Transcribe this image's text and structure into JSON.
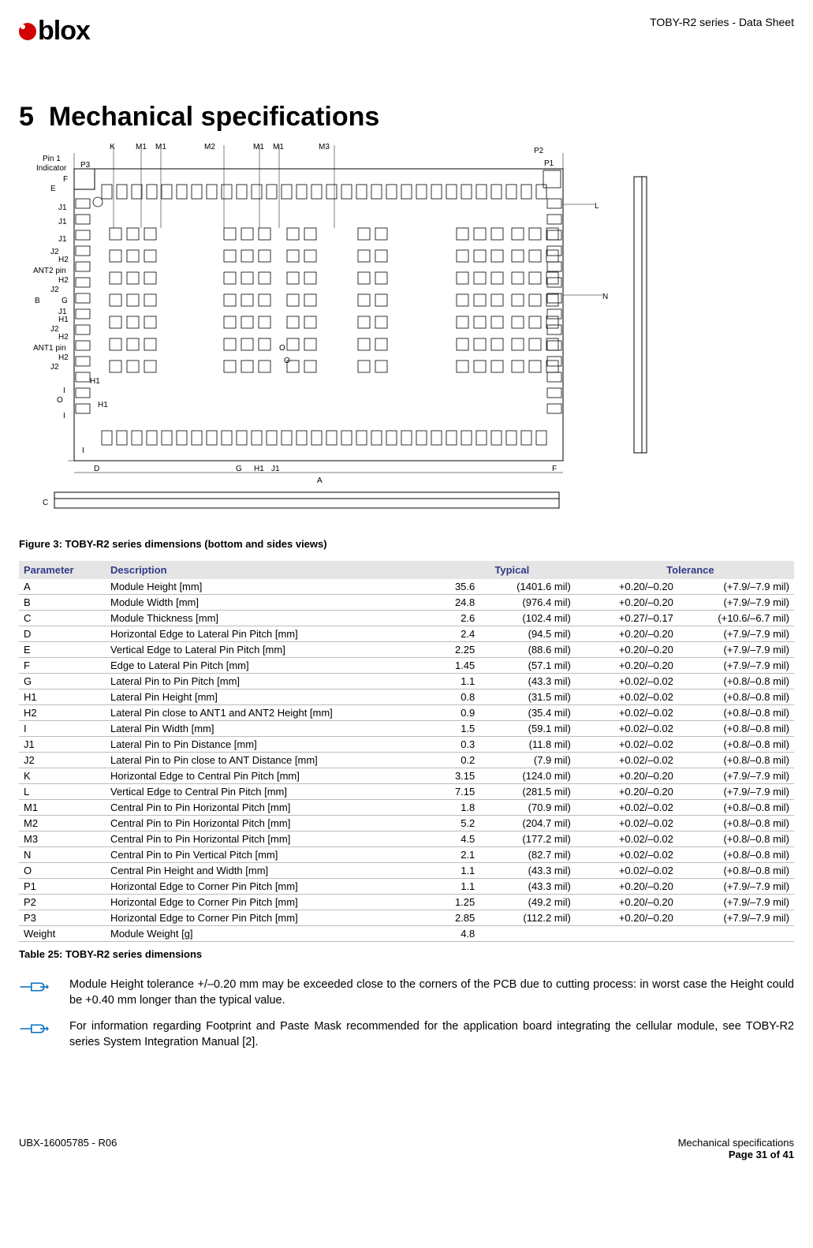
{
  "header": {
    "doc_type": "TOBY-R2 series - Data Sheet",
    "logo_text": "blox"
  },
  "section": {
    "number": "5",
    "title": "Mechanical specifications"
  },
  "figure_caption": "Figure 3: TOBY-R2 series dimensions (bottom and sides views)",
  "table_caption": "Table 25: TOBY-R2 series dimensions",
  "table_header": {
    "param": "Parameter",
    "desc": "Description",
    "typ": "Typical",
    "tol": "Tolerance"
  },
  "rows": [
    {
      "p": "A",
      "d": "Module Height [mm]",
      "v": "35.6",
      "mil": "(1401.6 mil)",
      "t1": "+0.20/–0.20",
      "t2": "(+7.9/–7.9 mil)"
    },
    {
      "p": "B",
      "d": "Module Width [mm]",
      "v": "24.8",
      "mil": "(976.4 mil)",
      "t1": "+0.20/–0.20",
      "t2": "(+7.9/–7.9 mil)"
    },
    {
      "p": "C",
      "d": "Module Thickness [mm]",
      "v": "2.6",
      "mil": "(102.4 mil)",
      "t1": "+0.27/–0.17",
      "t2": "(+10.6/–6.7 mil)"
    },
    {
      "p": "D",
      "d": "Horizontal Edge to Lateral Pin Pitch [mm]",
      "v": "2.4",
      "mil": "(94.5 mil)",
      "t1": "+0.20/–0.20",
      "t2": "(+7.9/–7.9 mil)"
    },
    {
      "p": "E",
      "d": "Vertical Edge to Lateral Pin Pitch [mm]",
      "v": "2.25",
      "mil": "(88.6 mil)",
      "t1": "+0.20/–0.20",
      "t2": "(+7.9/–7.9 mil)"
    },
    {
      "p": "F",
      "d": "Edge to Lateral Pin Pitch [mm]",
      "v": "1.45",
      "mil": "(57.1 mil)",
      "t1": "+0.20/–0.20",
      "t2": "(+7.9/–7.9 mil)"
    },
    {
      "p": "G",
      "d": "Lateral Pin to Pin Pitch [mm]",
      "v": "1.1",
      "mil": "(43.3 mil)",
      "t1": "+0.02/–0.02",
      "t2": "(+0.8/–0.8 mil)"
    },
    {
      "p": "H1",
      "d": "Lateral Pin Height [mm]",
      "v": "0.8",
      "mil": "(31.5 mil)",
      "t1": "+0.02/–0.02",
      "t2": "(+0.8/–0.8 mil)"
    },
    {
      "p": "H2",
      "d": "Lateral Pin close to ANT1 and ANT2 Height [mm]",
      "v": "0.9",
      "mil": "(35.4 mil)",
      "t1": "+0.02/–0.02",
      "t2": "(+0.8/–0.8 mil)"
    },
    {
      "p": "I",
      "d": "Lateral Pin Width [mm]",
      "v": "1.5",
      "mil": "(59.1 mil)",
      "t1": "+0.02/–0.02",
      "t2": "(+0.8/–0.8 mil)"
    },
    {
      "p": "J1",
      "d": "Lateral Pin to Pin Distance [mm]",
      "v": "0.3",
      "mil": "(11.8 mil)",
      "t1": "+0.02/–0.02",
      "t2": "(+0.8/–0.8 mil)"
    },
    {
      "p": "J2",
      "d": "Lateral Pin to Pin close to ANT Distance [mm]",
      "v": "0.2",
      "mil": "(7.9 mil)",
      "t1": "+0.02/–0.02",
      "t2": "(+0.8/–0.8 mil)"
    },
    {
      "p": "K",
      "d": "Horizontal Edge to Central Pin Pitch [mm]",
      "v": "3.15",
      "mil": "(124.0 mil)",
      "t1": "+0.20/–0.20",
      "t2": "(+7.9/–7.9 mil)"
    },
    {
      "p": "L",
      "d": "Vertical Edge to Central Pin Pitch [mm]",
      "v": "7.15",
      "mil": "(281.5 mil)",
      "t1": "+0.20/–0.20",
      "t2": "(+7.9/–7.9 mil)"
    },
    {
      "p": "M1",
      "d": "Central Pin to Pin Horizontal Pitch [mm]",
      "v": "1.8",
      "mil": "(70.9 mil)",
      "t1": "+0.02/–0.02",
      "t2": "(+0.8/–0.8 mil)"
    },
    {
      "p": "M2",
      "d": "Central Pin to Pin Horizontal Pitch [mm]",
      "v": "5.2",
      "mil": "(204.7 mil)",
      "t1": "+0.02/–0.02",
      "t2": "(+0.8/–0.8 mil)"
    },
    {
      "p": "M3",
      "d": "Central Pin to Pin Horizontal Pitch [mm]",
      "v": "4.5",
      "mil": "(177.2 mil)",
      "t1": "+0.02/–0.02",
      "t2": "(+0.8/–0.8 mil)"
    },
    {
      "p": "N",
      "d": "Central Pin to Pin Vertical Pitch [mm]",
      "v": "2.1",
      "mil": "(82.7 mil)",
      "t1": "+0.02/–0.02",
      "t2": "(+0.8/–0.8 mil)"
    },
    {
      "p": "O",
      "d": "Central Pin Height and Width [mm]",
      "v": "1.1",
      "mil": "(43.3 mil)",
      "t1": "+0.02/–0.02",
      "t2": "(+0.8/–0.8 mil)"
    },
    {
      "p": "P1",
      "d": "Horizontal Edge to Corner Pin Pitch [mm]",
      "v": "1.1",
      "mil": "(43.3 mil)",
      "t1": "+0.20/–0.20",
      "t2": "(+7.9/–7.9 mil)"
    },
    {
      "p": "P2",
      "d": "Horizontal Edge to Corner Pin Pitch [mm]",
      "v": "1.25",
      "mil": "(49.2 mil)",
      "t1": "+0.20/–0.20",
      "t2": "(+7.9/–7.9 mil)"
    },
    {
      "p": "P3",
      "d": "Horizontal Edge to Corner Pin Pitch [mm]",
      "v": "2.85",
      "mil": "(112.2 mil)",
      "t1": "+0.20/–0.20",
      "t2": "(+7.9/–7.9 mil)"
    },
    {
      "p": "Weight",
      "d": "Module Weight [g]",
      "v": "4.8",
      "mil": "",
      "t1": "",
      "t2": ""
    }
  ],
  "notes": [
    "Module Height tolerance +/–0.20 mm may be exceeded close to the corners of the PCB due to cutting process: in worst case the Height could be +0.40 mm longer than the typical value.",
    "For information regarding Footprint and Paste Mask recommended for the application board integrating the cellular module, see TOBY-R2 series System Integration Manual [2]."
  ],
  "footer": {
    "left": "UBX-16005785 - R06",
    "right1": "Mechanical specifications",
    "right2": "Page 31 of 41"
  },
  "colors": {
    "accent_red": "#d40000",
    "header_blue": "#333a8a",
    "note_blue": "#0070c0",
    "table_header_bg": "#e5e5e5",
    "row_border": "#bcbcbc"
  },
  "diagram": {
    "top_labels": [
      "K",
      "M1",
      "M1",
      "M2",
      "M1",
      "M1",
      "M3"
    ],
    "left_labels": [
      "Pin 1",
      "Indicator",
      "E",
      "F",
      "J1",
      "J1",
      "J1",
      "J2",
      "H2",
      "ANT2 pin",
      "H2",
      "J2",
      "G",
      "J1",
      "H1",
      "J2",
      "H2",
      "ANT1 pin",
      "H2",
      "J2",
      "H1",
      "O",
      "I",
      "H1",
      "O",
      "I",
      "I"
    ],
    "bottom_labels": [
      "D",
      "G",
      "H1",
      "J1",
      "A",
      "F"
    ],
    "right_labels": [
      "P2",
      "P1",
      "L",
      "N"
    ],
    "side_label": "C",
    "misc_labels": [
      "P3",
      "B",
      "O",
      "O"
    ]
  }
}
